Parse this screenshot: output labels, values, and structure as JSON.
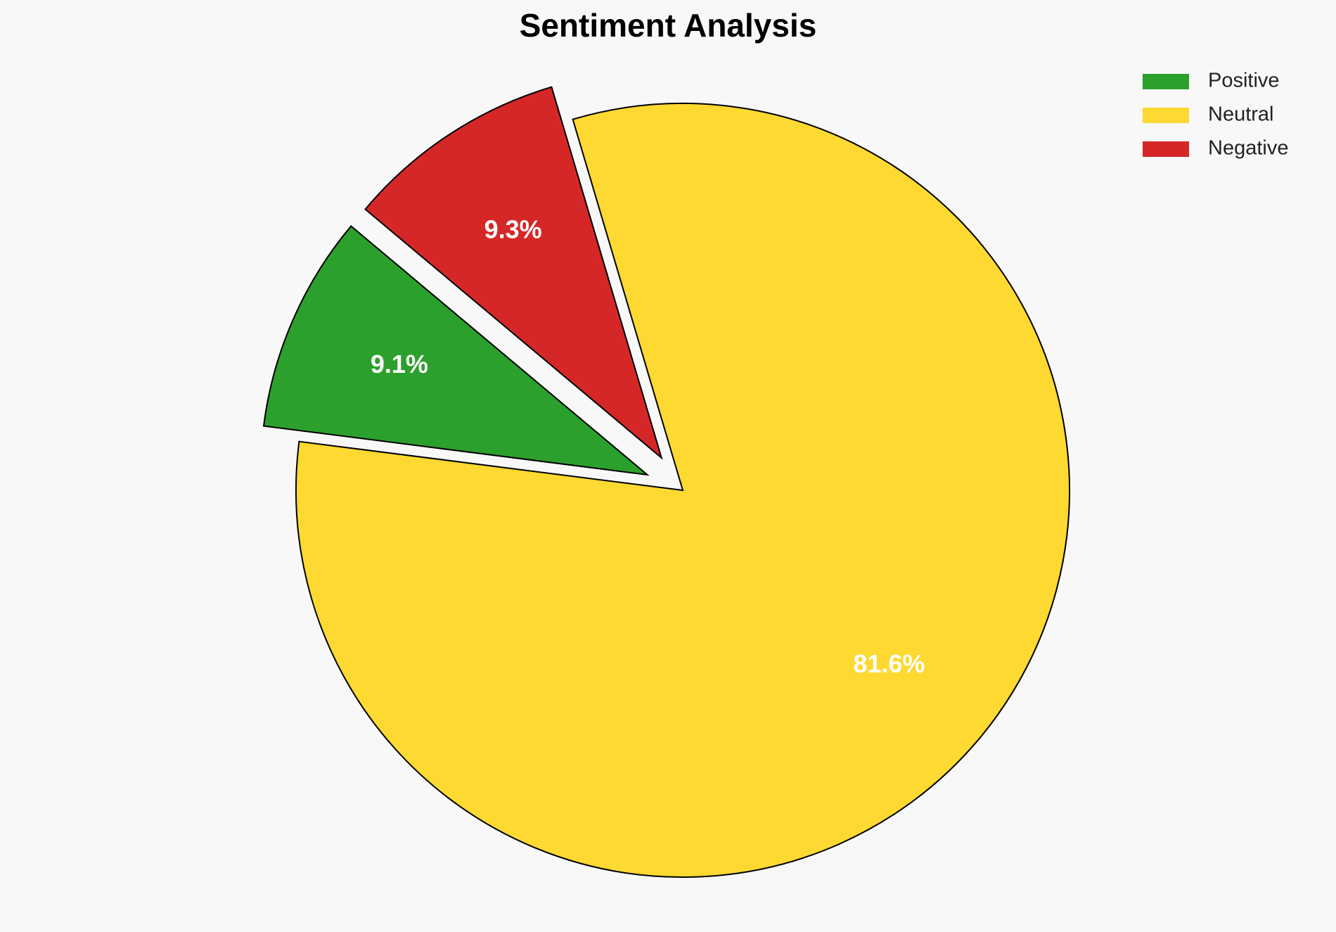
{
  "chart_data": {
    "type": "pie",
    "title": "Sentiment Analysis",
    "categories": [
      "Positive",
      "Neutral",
      "Negative"
    ],
    "values": [
      9.1,
      81.6,
      9.3
    ],
    "value_labels": [
      "9.1%",
      "81.6%",
      "9.3%"
    ],
    "colors": [
      "#2ca02c",
      "#fdd931",
      "#d62728"
    ],
    "legend": "upper right"
  }
}
